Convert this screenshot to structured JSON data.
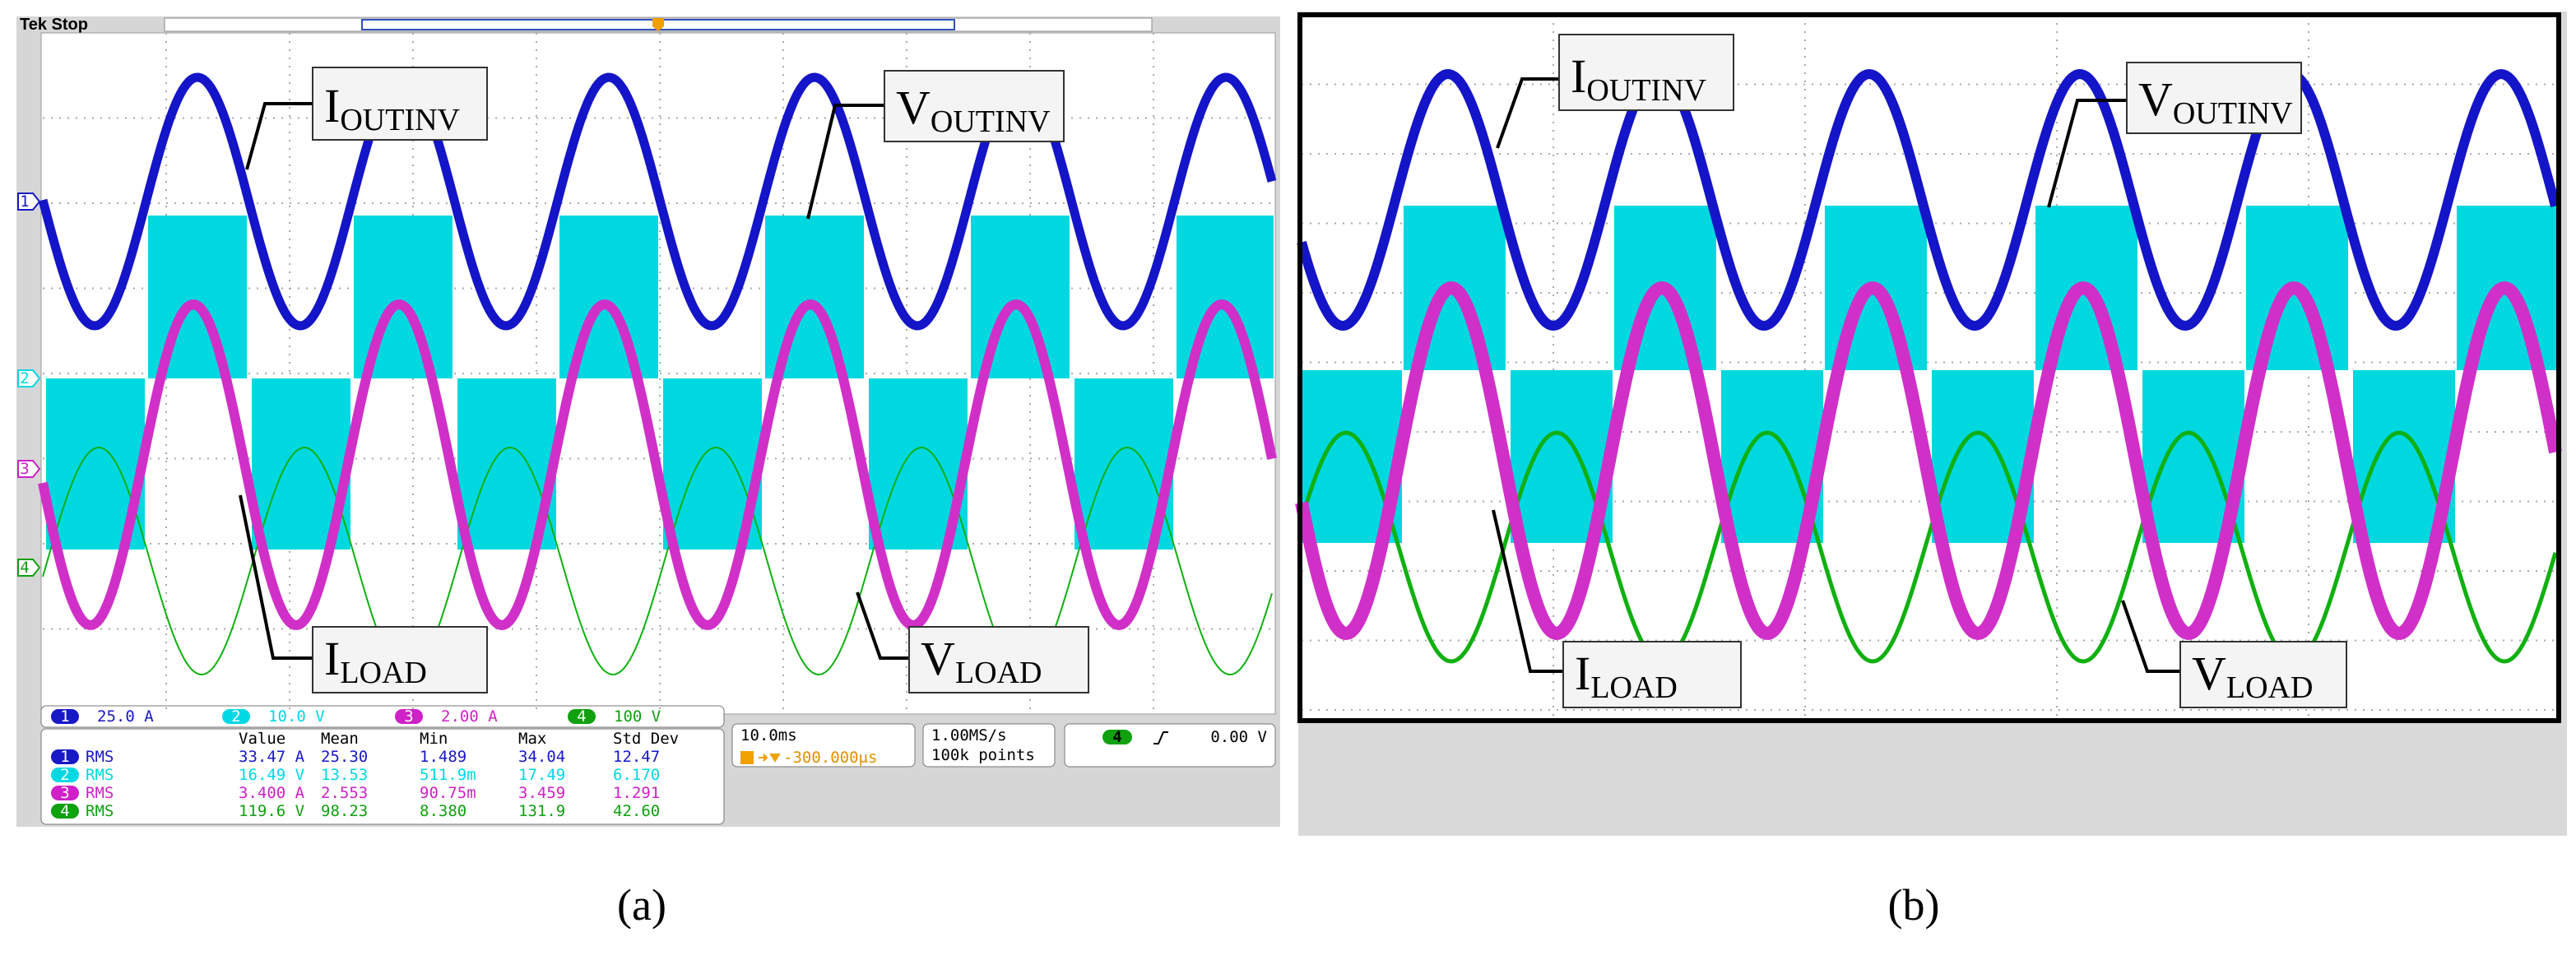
{
  "panel_a": {
    "header": "Tek Stop",
    "channel_markers": [
      "1",
      "2",
      "3",
      "4"
    ],
    "labels": [
      {
        "main": "I",
        "sub": "OUTINV"
      },
      {
        "main": "V",
        "sub": "OUTINV"
      },
      {
        "main": "I",
        "sub": "LOAD"
      },
      {
        "main": "V",
        "sub": "LOAD"
      }
    ],
    "channel_scales": [
      {
        "ch": "1",
        "scale": "25.0 A"
      },
      {
        "ch": "2",
        "scale": "10.0 V"
      },
      {
        "ch": "3",
        "scale": "2.00 A"
      },
      {
        "ch": "4",
        "scale": "100 V"
      }
    ],
    "measurements": {
      "columns": [
        "Value",
        "Mean",
        "Min",
        "Max",
        "Std Dev"
      ],
      "rows": [
        {
          "ch": "1",
          "type": "RMS",
          "cells": [
            "33.47 A",
            "25.30",
            "1.489",
            "34.04",
            "12.47"
          ]
        },
        {
          "ch": "2",
          "type": "RMS",
          "cells": [
            "16.49 V",
            "13.53",
            "511.9m",
            "17.49",
            "6.170"
          ]
        },
        {
          "ch": "3",
          "type": "RMS",
          "cells": [
            "3.400 A",
            "2.553",
            "90.75m",
            "3.459",
            "1.291"
          ]
        },
        {
          "ch": "4",
          "type": "RMS",
          "cells": [
            "119.6 V",
            "98.23",
            "8.380",
            "131.9",
            "42.60"
          ]
        }
      ]
    },
    "timebase": "10.0ms",
    "trigger_position": "-300.000μs",
    "sample_rate": "1.00MS/s",
    "record_length": "100k points",
    "trigger": {
      "ch": "4",
      "level": "0.00 V"
    }
  },
  "panel_b": {
    "labels": [
      {
        "main": "I",
        "sub": "OUTINV"
      },
      {
        "main": "V",
        "sub": "OUTINV"
      },
      {
        "main": "I",
        "sub": "LOAD"
      },
      {
        "main": "V",
        "sub": "LOAD"
      }
    ]
  },
  "captions": [
    "(a)",
    "(b)"
  ]
}
